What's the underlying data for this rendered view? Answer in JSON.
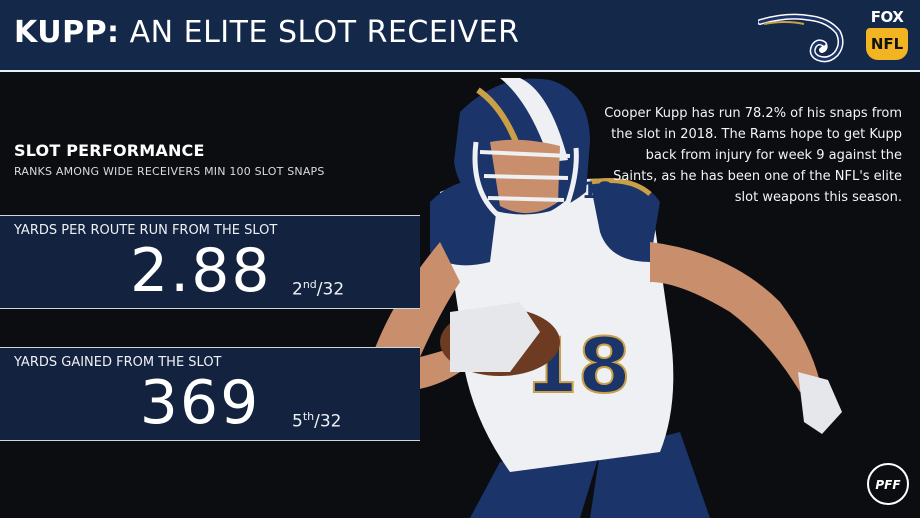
{
  "header": {
    "title_bold": "KUPP:",
    "title_rest": "AN ELITE SLOT RECEIVER",
    "team_logo_icon": "rams-horn-logo",
    "network_logo": {
      "top": "FOX",
      "shield": "NFL"
    }
  },
  "section": {
    "title": "SLOT PERFORMANCE",
    "subtitle": "RANKS AMONG WIDE RECEIVERS MIN 100 SLOT SNAPS"
  },
  "stats": [
    {
      "label": "YARDS PER ROUTE RUN FROM THE SLOT",
      "value": "2.88",
      "rank": "2",
      "rank_suffix": "nd",
      "rank_total": "/32"
    },
    {
      "label": "YARDS GAINED FROM THE SLOT",
      "value": "369",
      "rank": "5",
      "rank_suffix": "th",
      "rank_total": "/32"
    }
  ],
  "blurb": "Cooper Kupp has run 78.2% of his snaps from the slot in 2018. The Rams hope to get Kupp back from injury for week 9 against the Saints, as he has been one of the NFL's elite slot weapons this season.",
  "player_photo": {
    "jersey_number": "18",
    "icon": "football-player-photo"
  },
  "footer": {
    "brand_icon": "pff-logo"
  },
  "colors": {
    "header_bg": "#14284a",
    "page_bg": "#0c0d10",
    "stat_box_bg": "#13223f",
    "rams_gold": "#c9a047",
    "rams_navy": "#1b3469"
  }
}
